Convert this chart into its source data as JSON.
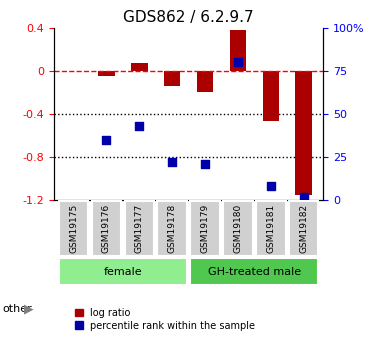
{
  "title": "GDS862 / 6.2.9.7",
  "samples": [
    "GSM19175",
    "GSM19176",
    "GSM19177",
    "GSM19178",
    "GSM19179",
    "GSM19180",
    "GSM19181",
    "GSM19182"
  ],
  "log_ratio": [
    0.0,
    -0.05,
    0.07,
    -0.14,
    -0.2,
    0.38,
    -0.47,
    -1.15
  ],
  "percentile_rank": [
    null,
    35,
    43,
    22,
    21,
    80,
    8,
    2
  ],
  "groups": [
    {
      "label": "female",
      "start": 0,
      "end": 3,
      "color": "#90ee90"
    },
    {
      "label": "GH-treated male",
      "start": 4,
      "end": 7,
      "color": "#50c850"
    }
  ],
  "ylim": [
    -1.2,
    0.4
  ],
  "y2lim": [
    0,
    100
  ],
  "yticks": [
    0.4,
    0.0,
    -0.4,
    -0.8,
    -1.2
  ],
  "ytick_labels": [
    "0.4",
    "0",
    "-0.4",
    "-0.8",
    "-1.2"
  ],
  "y2ticks": [
    100,
    75,
    50,
    25,
    0
  ],
  "y2tick_labels": [
    "100%",
    "75",
    "50",
    "25",
    "0"
  ],
  "bar_color": "#aa0000",
  "dot_color": "#0000aa",
  "bar_width": 0.5,
  "dot_size": 40,
  "hline_y": 0.0,
  "dotted_lines": [
    -0.4,
    -0.8
  ],
  "legend_log_ratio_label": "log ratio",
  "legend_percentile_label": "percentile rank within the sample",
  "other_label": "other"
}
